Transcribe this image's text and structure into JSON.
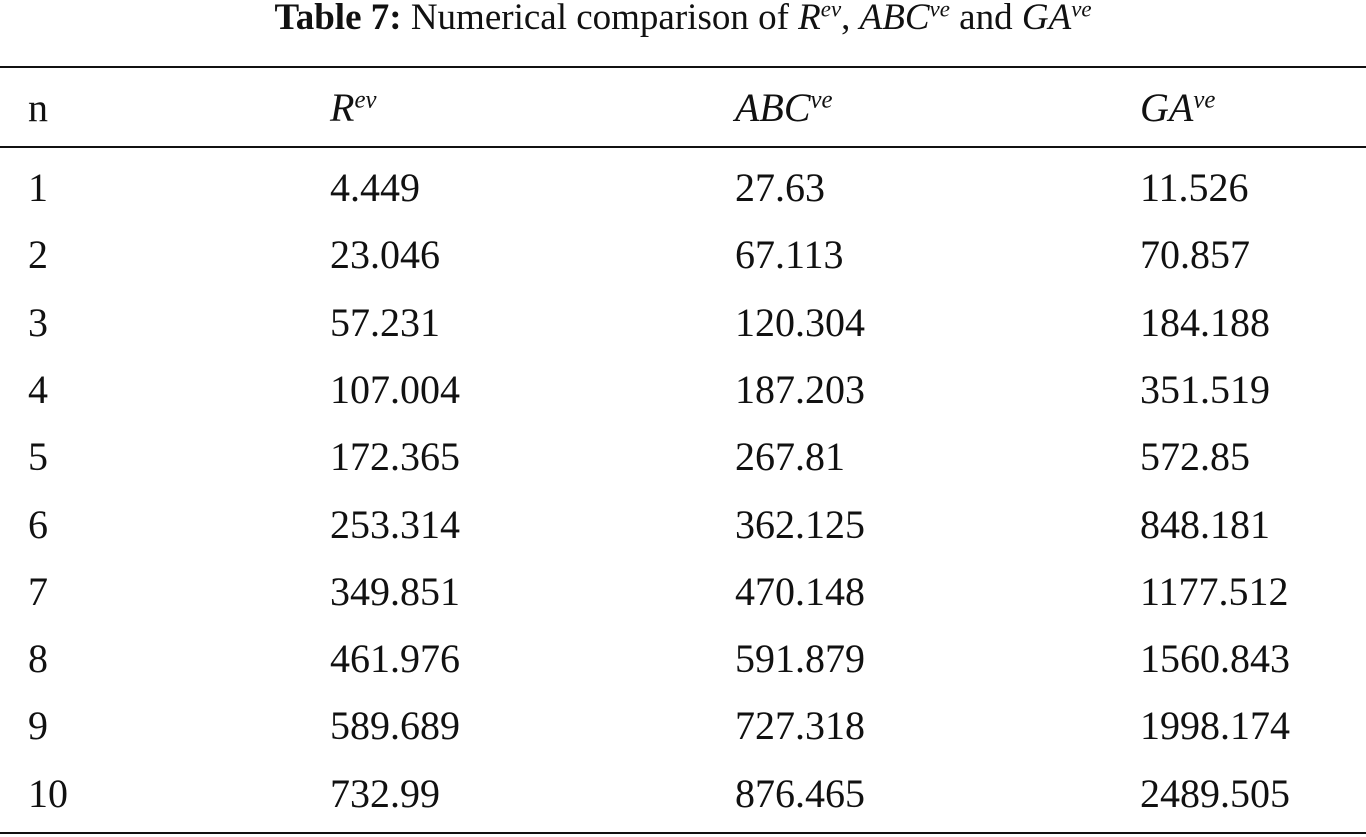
{
  "caption": {
    "label": "Table 7:",
    "text": "Numerical comparison of",
    "items": [
      {
        "base": "R",
        "sup": "ev"
      },
      {
        "base": "ABC",
        "sup": "ve"
      },
      {
        "base": "GA",
        "sup": "ve"
      }
    ],
    "separators": [
      ",",
      "and"
    ]
  },
  "table": {
    "header": [
      "n",
      {
        "base": "R",
        "sup": "ev"
      },
      {
        "base": "ABC",
        "sup": "ve"
      },
      {
        "base": "GA",
        "sup": "ve"
      }
    ],
    "rows": [
      [
        1,
        4.449,
        27.63,
        11.526
      ],
      [
        2,
        23.046,
        67.113,
        70.857
      ],
      [
        3,
        57.231,
        120.304,
        184.188
      ],
      [
        4,
        107.004,
        187.203,
        351.519
      ],
      [
        5,
        172.365,
        267.81,
        572.85
      ],
      [
        6,
        253.314,
        362.125,
        848.181
      ],
      [
        7,
        349.851,
        470.148,
        1177.512
      ],
      [
        8,
        461.976,
        591.879,
        1560.843
      ],
      [
        9,
        589.689,
        727.318,
        1998.174
      ],
      [
        10,
        732.99,
        876.465,
        2489.505
      ]
    ]
  }
}
